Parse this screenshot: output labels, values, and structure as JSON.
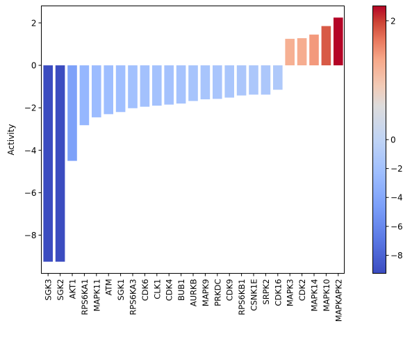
{
  "chart_data": {
    "type": "bar",
    "ylabel": "Activity",
    "ylim": [
      -9.8,
      2.8
    ],
    "yticks": [
      -8,
      -6,
      -4,
      -2,
      0,
      2
    ],
    "categories": [
      "SGK3",
      "SGK2",
      "AKT1",
      "RPS6KA1",
      "MAPK11",
      "ATM",
      "SGK1",
      "RPS6KA3",
      "CDK6",
      "CLK1",
      "CDK4",
      "BUB1",
      "AURKB",
      "MAPK9",
      "PRKDC",
      "CDK9",
      "RPS6KB1",
      "CSNK1E",
      "SRPK2",
      "CDK16",
      "MAPK3",
      "CDK2",
      "MAPK14",
      "MAPK10",
      "MAPKAPK2"
    ],
    "values": [
      -9.25,
      -9.25,
      -4.5,
      -2.82,
      -2.45,
      -2.3,
      -2.2,
      -2.02,
      -1.95,
      -1.9,
      -1.85,
      -1.8,
      -1.68,
      -1.6,
      -1.58,
      -1.52,
      -1.42,
      -1.38,
      -1.38,
      -1.15,
      1.25,
      1.28,
      1.45,
      1.85,
      2.25
    ],
    "colormap": "coolwarm",
    "colorbar": {
      "vmin": -9.25,
      "vcenter": 0,
      "vmax": 2.25,
      "ticks": [
        -8,
        -6,
        -4,
        -2,
        0,
        2
      ]
    },
    "grid": false,
    "legend": "none"
  }
}
